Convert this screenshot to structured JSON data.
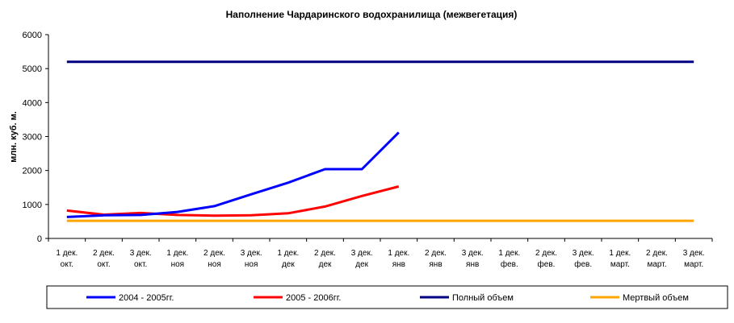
{
  "chart_data": {
    "type": "line",
    "title": "Наполнение Чардаринского водохранилища (межвегетация)",
    "xlabel": "",
    "ylabel": "млн. куб. м.",
    "ylim": [
      0,
      6000
    ],
    "yticks": [
      0,
      1000,
      2000,
      3000,
      4000,
      5000,
      6000
    ],
    "grid": false,
    "legend_position": "bottom",
    "categories": [
      [
        "1 дек.",
        "окт."
      ],
      [
        "2 дек.",
        "окт."
      ],
      [
        "3 дек.",
        "окт."
      ],
      [
        "1 дек.",
        "ноя"
      ],
      [
        "2 дек.",
        "ноя"
      ],
      [
        "3 дек.",
        "ноя"
      ],
      [
        "1 дек.",
        "дек"
      ],
      [
        "2 дек.",
        "дек"
      ],
      [
        "3 дек.",
        "дек"
      ],
      [
        "1 дек.",
        "янв"
      ],
      [
        "2 дек.",
        "янв"
      ],
      [
        "3 дек.",
        "янв"
      ],
      [
        "1 дек.",
        "фев."
      ],
      [
        "2 дек.",
        "фев."
      ],
      [
        "3 дек.",
        "фев."
      ],
      [
        "1 дек.",
        "март."
      ],
      [
        "2 дек.",
        "март."
      ],
      [
        "3 дек.",
        "март."
      ]
    ],
    "series": [
      {
        "name": "2004 - 2005гг.",
        "color": "#0000FF",
        "values": [
          630,
          680,
          690,
          780,
          950,
          1300,
          1640,
          2040,
          2040,
          3120,
          null,
          null,
          null,
          null,
          null,
          null,
          null,
          null
        ]
      },
      {
        "name": "2005 - 2006гг.",
        "color": "#FF0000",
        "values": [
          820,
          700,
          750,
          690,
          670,
          680,
          740,
          940,
          1250,
          1530,
          null,
          null,
          null,
          null,
          null,
          null,
          null,
          null
        ]
      },
      {
        "name": "Полный объем",
        "color": "#000080",
        "values": [
          5200,
          5200,
          5200,
          5200,
          5200,
          5200,
          5200,
          5200,
          5200,
          5200,
          5200,
          5200,
          5200,
          5200,
          5200,
          5200,
          5200,
          5200
        ]
      },
      {
        "name": "Мертвый объем",
        "color": "#FFA500",
        "values": [
          520,
          520,
          520,
          520,
          520,
          520,
          520,
          520,
          520,
          520,
          520,
          520,
          520,
          520,
          520,
          520,
          520,
          520
        ]
      }
    ]
  }
}
